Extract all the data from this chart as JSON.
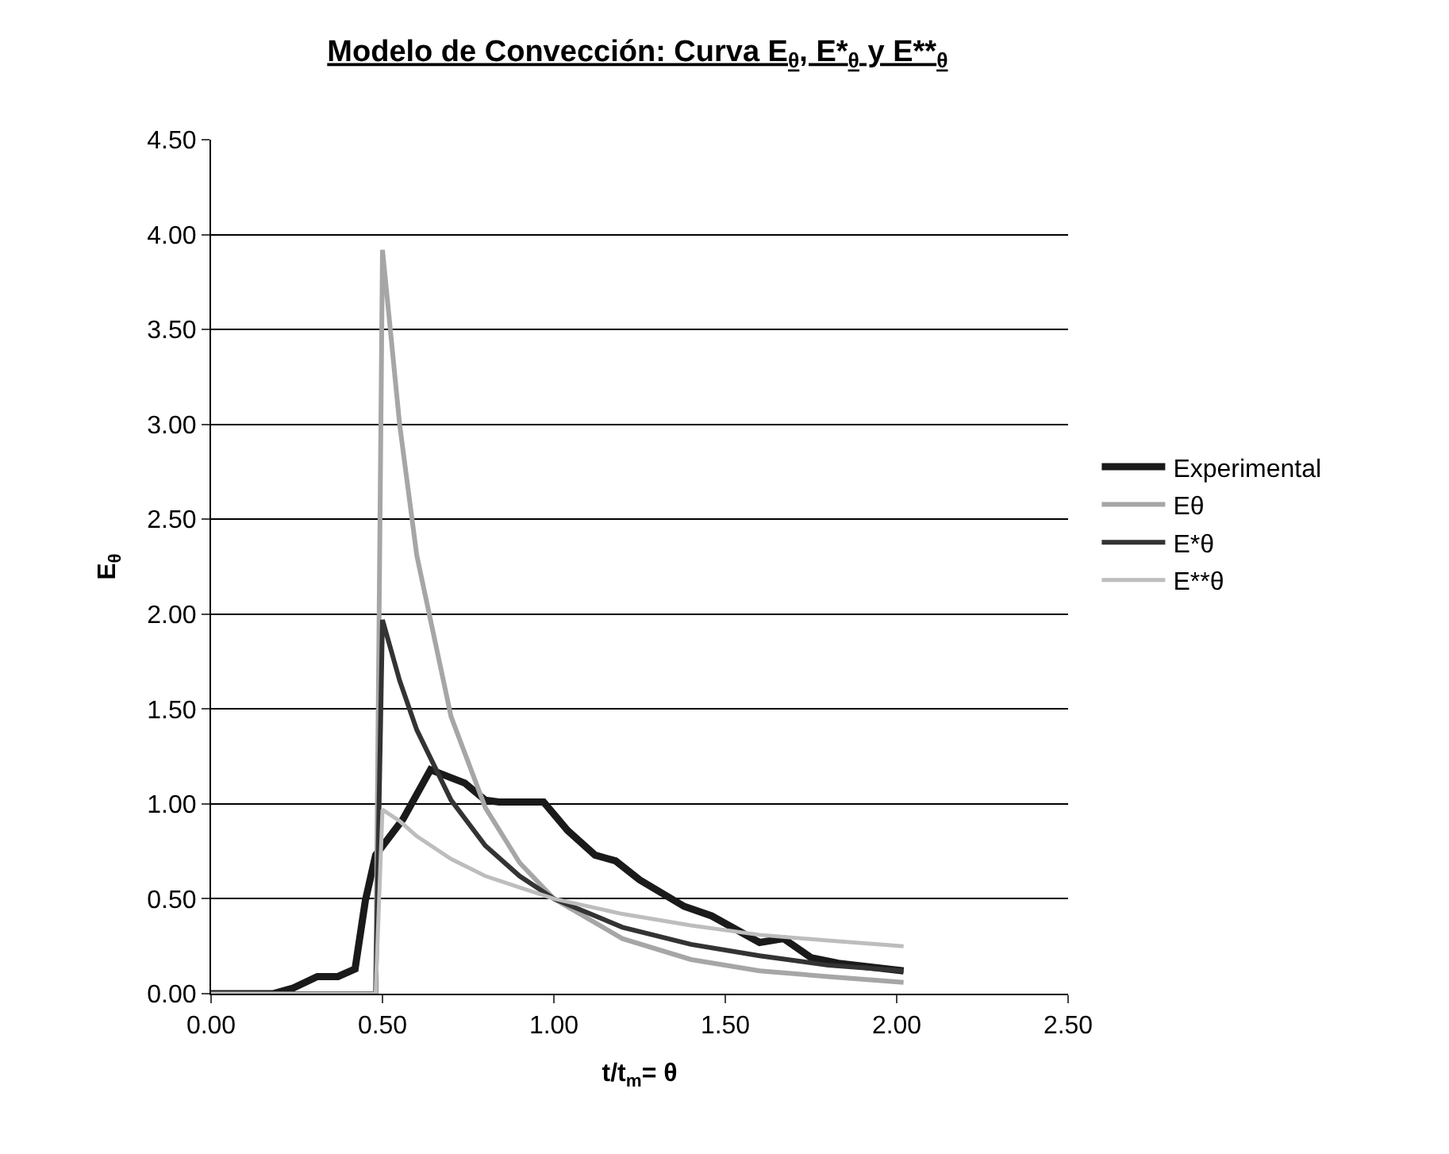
{
  "chart_data": {
    "type": "line",
    "title": "Modelo de Convección: Curva E$_{θ}$, E*$_{θ}$ y E**$_{θ}$",
    "xlabel": "t/t$_{m}$= θ",
    "ylabel": "E$_{θ}$",
    "xlim": [
      0,
      2.5
    ],
    "xticks": [
      {
        "value": 0,
        "label": "0.00"
      },
      {
        "value": 0.5,
        "label": "0.50"
      },
      {
        "value": 1,
        "label": "1.00"
      },
      {
        "value": 1.5,
        "label": "1.50"
      },
      {
        "value": 2,
        "label": "2.00"
      },
      {
        "value": 2.5,
        "label": "2.50"
      }
    ],
    "ylim": [
      0,
      4.5
    ],
    "yticks": [
      {
        "value": 0,
        "label": "0.00"
      },
      {
        "value": 0.5,
        "label": "0.50"
      },
      {
        "value": 1,
        "label": "1.00"
      },
      {
        "value": 1.5,
        "label": "1.50"
      },
      {
        "value": 2,
        "label": "2.00"
      },
      {
        "value": 2.5,
        "label": "2.50"
      },
      {
        "value": 3,
        "label": "3.00"
      },
      {
        "value": 3.5,
        "label": "3.50"
      },
      {
        "value": 4,
        "label": "4.00"
      },
      {
        "value": 4.5,
        "label": "4.50"
      }
    ],
    "grid": "y",
    "legend": "right",
    "series": [
      {
        "name": "Experimental",
        "color": "#1a1a1a",
        "x": [
          0,
          0.1,
          0.18,
          0.24,
          0.31,
          0.37,
          0.42,
          0.45,
          0.48,
          0.56,
          0.64,
          0.74,
          0.8,
          0.84,
          0.97,
          1.04,
          1.12,
          1.18,
          1.25,
          1.38,
          1.46,
          1.53,
          1.6,
          1.67,
          1.75,
          1.83,
          2.02
        ],
        "values": [
          0,
          0,
          0,
          0.03,
          0.09,
          0.09,
          0.13,
          0.49,
          0.73,
          0.92,
          1.18,
          1.11,
          1.02,
          1.01,
          1.01,
          0.86,
          0.73,
          0.7,
          0.6,
          0.46,
          0.41,
          0.34,
          0.27,
          0.29,
          0.19,
          0.16,
          0.12
        ]
      },
      {
        "name": "Eθ",
        "color": "#a6a6a6",
        "x": [
          0,
          0.2,
          0.4,
          0.48,
          0.5,
          0.55,
          0.6,
          0.7,
          0.8,
          0.9,
          1.0,
          1.2,
          1.4,
          1.6,
          1.8,
          2.02
        ],
        "values": [
          0,
          0,
          0,
          0,
          3.92,
          3.0,
          2.31,
          1.46,
          0.98,
          0.69,
          0.5,
          0.29,
          0.18,
          0.12,
          0.09,
          0.06
        ]
      },
      {
        "name": "E*θ",
        "color": "#333333",
        "x": [
          0,
          0.2,
          0.4,
          0.48,
          0.5,
          0.55,
          0.6,
          0.7,
          0.8,
          0.9,
          1.0,
          1.2,
          1.4,
          1.6,
          1.8,
          2.02
        ],
        "values": [
          0,
          0,
          0,
          0,
          1.97,
          1.65,
          1.39,
          1.02,
          0.78,
          0.62,
          0.5,
          0.35,
          0.26,
          0.2,
          0.15,
          0.12
        ]
      },
      {
        "name": "E**θ",
        "color": "#bdbdbd",
        "x": [
          0,
          0.2,
          0.4,
          0.48,
          0.5,
          0.55,
          0.6,
          0.7,
          0.8,
          0.9,
          1.0,
          1.2,
          1.4,
          1.6,
          1.8,
          2.02
        ],
        "values": [
          0,
          0,
          0,
          0,
          0.97,
          0.91,
          0.83,
          0.71,
          0.62,
          0.56,
          0.5,
          0.42,
          0.36,
          0.31,
          0.28,
          0.25
        ]
      }
    ]
  }
}
